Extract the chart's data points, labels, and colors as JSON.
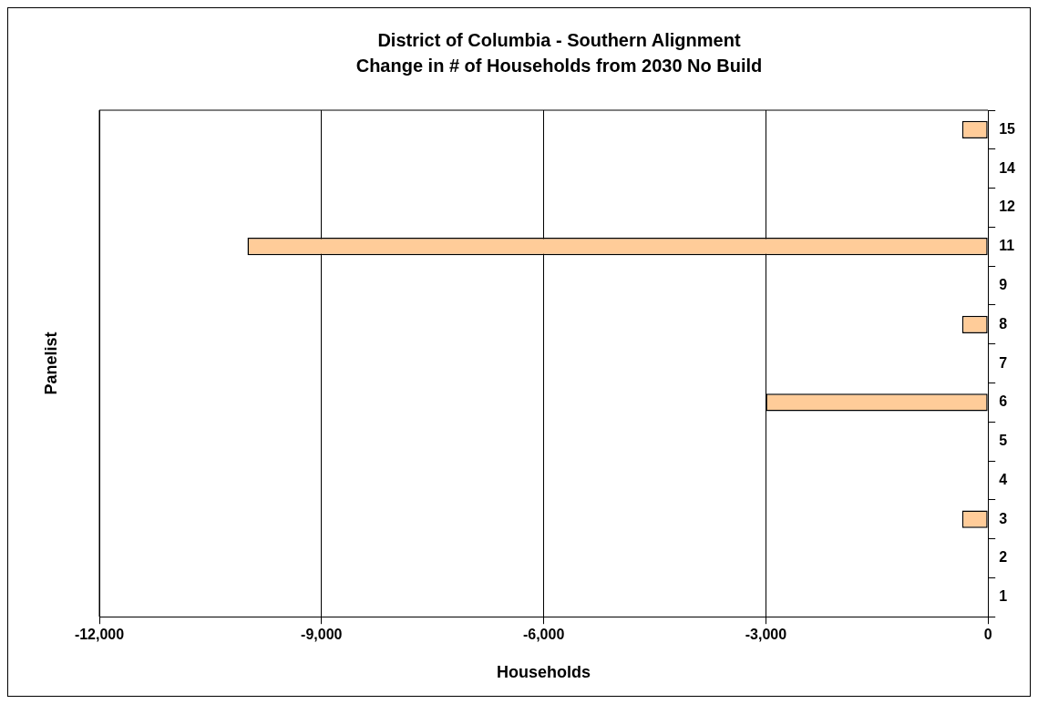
{
  "chart_data": {
    "type": "bar",
    "orientation": "horizontal",
    "title": "District of Columbia - Southern Alignment",
    "subtitle": "Change in # of Households from 2030 No Build",
    "xlabel": "Households",
    "ylabel": "Panelist",
    "categories": [
      "15",
      "14",
      "12",
      "11",
      "9",
      "8",
      "7",
      "6",
      "5",
      "4",
      "3",
      "2",
      "1"
    ],
    "values": [
      -350,
      null,
      null,
      -10000,
      null,
      -350,
      null,
      -3000,
      null,
      null,
      -350,
      null,
      null
    ],
    "color": "#ffcc99",
    "xlim": [
      -12000,
      0
    ],
    "xticks": [
      {
        "value": -12000,
        "label": "-12,000"
      },
      {
        "value": -9000,
        "label": "-9,000"
      },
      {
        "value": -6000,
        "label": "-6,000"
      },
      {
        "value": -3000,
        "label": "-3,000"
      },
      0
    ],
    "grid": "x",
    "legend": false
  }
}
